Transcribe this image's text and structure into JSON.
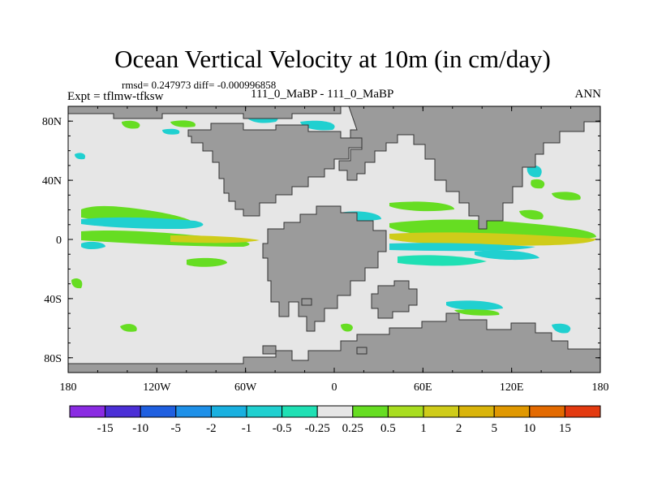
{
  "title": "Ocean Vertical Velocity at 10m (in cm/day)",
  "stats": "rmsd= 0.247973 diff= -0.000996858",
  "experiment": "Expt = tflmw-tfksw",
  "case_label": "111_0_MaBP - 111_0_MaBP",
  "season": "ANN",
  "axes": {
    "lat_ticks": [
      {
        "value": 80,
        "label": "80N"
      },
      {
        "value": 40,
        "label": "40N"
      },
      {
        "value": 0,
        "label": "0"
      },
      {
        "value": -40,
        "label": "40S"
      },
      {
        "value": -80,
        "label": "80S"
      }
    ],
    "lon_ticks": [
      {
        "value": -180,
        "label": "180"
      },
      {
        "value": -120,
        "label": "120W"
      },
      {
        "value": -60,
        "label": "60W"
      },
      {
        "value": 0,
        "label": "0"
      },
      {
        "value": 60,
        "label": "60E"
      },
      {
        "value": 120,
        "label": "120E"
      },
      {
        "value": 180,
        "label": "180"
      }
    ]
  },
  "colorbar": {
    "colors": [
      "#8a2be2",
      "#4b2fd6",
      "#1f5fe0",
      "#1e90e8",
      "#19b0e0",
      "#20d0d0",
      "#1fe0b4",
      "#e6e6e6",
      "#66dd22",
      "#a8dd20",
      "#cfcc1a",
      "#d9b40a",
      "#e09800",
      "#e36a00",
      "#e33a10"
    ],
    "labels": [
      "-15",
      "-10",
      "-5",
      "-2",
      "-1",
      "-0.5",
      "-0.25",
      "0.25",
      "0.5",
      "1",
      "2",
      "5",
      "10",
      "15"
    ]
  },
  "colors": {
    "ocean": "#e6e6e6",
    "land": "#9b9b9b"
  }
}
